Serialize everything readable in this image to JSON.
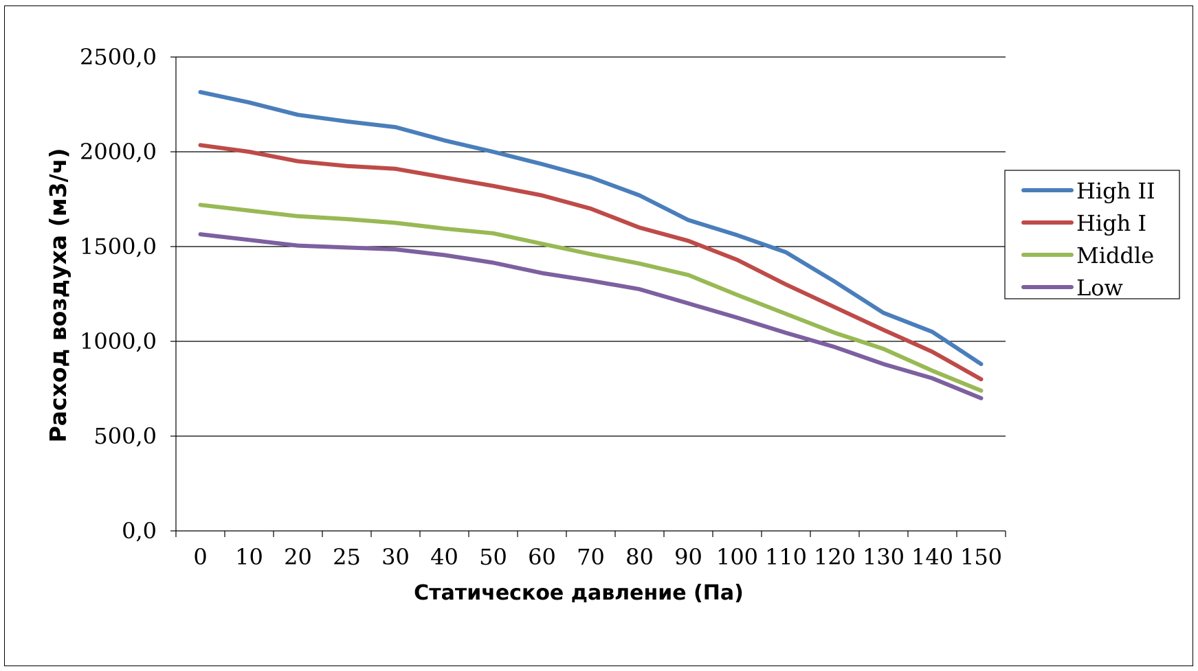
{
  "chart_data": {
    "type": "line",
    "title": "",
    "xlabel": "Статическое давление (Па)",
    "ylabel": "Расход воздуха (м3/ч)",
    "ylim": [
      0,
      2500
    ],
    "yticks": [
      "0,0",
      "500,0",
      "1000,0",
      "1500,0",
      "2000,0",
      "2500,0"
    ],
    "grid": "horizontal",
    "legend": "right",
    "categories": [
      "0",
      "10",
      "20",
      "25",
      "30",
      "40",
      "50",
      "60",
      "70",
      "80",
      "90",
      "100",
      "110",
      "120",
      "130",
      "140",
      "150"
    ],
    "series": [
      {
        "name": "High II",
        "color": "#4a7ebb",
        "values": [
          2315,
          2260,
          2195,
          2160,
          2130,
          2060,
          2000,
          1935,
          1865,
          1770,
          1640,
          1560,
          1470,
          1315,
          1150,
          1050,
          880
        ]
      },
      {
        "name": "High I",
        "color": "#be4b48",
        "values": [
          2035,
          2000,
          1950,
          1925,
          1910,
          1865,
          1820,
          1770,
          1700,
          1600,
          1530,
          1430,
          1300,
          1180,
          1060,
          945,
          800
        ]
      },
      {
        "name": "Middle",
        "color": "#98b954",
        "values": [
          1720,
          1690,
          1660,
          1645,
          1625,
          1595,
          1570,
          1515,
          1460,
          1410,
          1350,
          1245,
          1145,
          1045,
          960,
          845,
          740
        ]
      },
      {
        "name": "Low",
        "color": "#7d60a0",
        "values": [
          1565,
          1535,
          1505,
          1495,
          1485,
          1455,
          1415,
          1360,
          1320,
          1275,
          1200,
          1125,
          1045,
          970,
          880,
          805,
          700
        ]
      }
    ]
  }
}
